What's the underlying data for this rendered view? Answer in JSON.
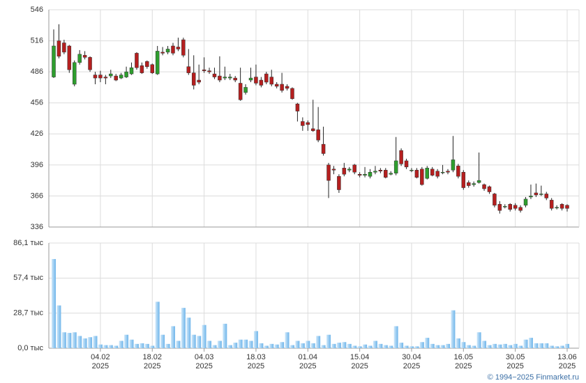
{
  "chart_data": [
    {
      "type": "candlestick",
      "open": [
        481,
        516,
        514,
        511,
        474,
        495,
        502,
        500,
        483,
        483,
        481,
        482,
        482,
        480,
        481,
        484,
        504,
        492,
        496,
        493,
        484,
        505,
        505,
        511,
        510,
        517,
        491,
        485,
        478,
        488,
        487,
        484,
        482,
        480,
        480,
        480,
        475,
        466,
        478,
        481,
        478,
        484,
        481,
        474,
        474,
        472,
        470,
        455,
        438,
        437,
        431,
        430,
        416,
        396,
        392,
        385,
        393,
        391,
        396,
        387,
        386,
        385,
        389,
        391,
        391,
        387,
        388,
        410,
        400,
        391,
        391,
        392,
        383,
        392,
        390,
        389,
        390,
        391,
        395,
        389,
        379,
        377,
        379,
        377,
        375,
        368,
        358,
        356,
        358,
        357,
        355,
        357,
        365,
        369,
        368,
        368,
        362,
        355,
        358,
        357
      ],
      "high": [
        527,
        532,
        517,
        512,
        497,
        507,
        506,
        501,
        486,
        487,
        483,
        488,
        484,
        485,
        491,
        495,
        505,
        495,
        497,
        494,
        511,
        510,
        511,
        514,
        519,
        519,
        508,
        502,
        493,
        500,
        490,
        490,
        501,
        491,
        484,
        482,
        490,
        474,
        490,
        493,
        481,
        486,
        488,
        476,
        485,
        474,
        471,
        456,
        442,
        439,
        459,
        452,
        433,
        398,
        395,
        387,
        398,
        394,
        397,
        389,
        394,
        392,
        395,
        393,
        393,
        390,
        423,
        412,
        402,
        393,
        393,
        394,
        395,
        394,
        392,
        396,
        392,
        424,
        397,
        391,
        381,
        380,
        408,
        378,
        376,
        369,
        361,
        358,
        359,
        359,
        357,
        365,
        377,
        378,
        376,
        370,
        364,
        357,
        359,
        358
      ],
      "low": [
        480,
        499,
        503,
        485,
        472,
        493,
        498,
        486,
        474,
        476,
        474,
        480,
        477,
        479,
        480,
        483,
        488,
        484,
        489,
        484,
        483,
        502,
        503,
        502,
        506,
        500,
        483,
        469,
        474,
        485,
        484,
        479,
        476,
        478,
        478,
        476,
        458,
        464,
        476,
        473,
        471,
        474,
        472,
        470,
        466,
        468,
        459,
        438,
        429,
        429,
        428,
        418,
        405,
        364,
        387,
        369,
        385,
        389,
        387,
        384,
        384,
        383,
        387,
        388,
        383,
        386,
        386,
        395,
        392,
        389,
        383,
        376,
        382,
        385,
        383,
        387,
        387,
        389,
        383,
        372,
        374,
        375,
        378,
        371,
        368,
        355,
        349,
        354,
        351,
        352,
        350,
        355,
        363,
        365,
        366,
        362,
        352,
        353,
        352,
        351
      ],
      "close": [
        511,
        501,
        505,
        488,
        495,
        503,
        500,
        488,
        480,
        480,
        480,
        484,
        478,
        483,
        486,
        490,
        490,
        485,
        491,
        485,
        506,
        504,
        508,
        504,
        508,
        502,
        485,
        473,
        476,
        487,
        486,
        481,
        478,
        481,
        481,
        478,
        459,
        471,
        480,
        475,
        473,
        476,
        474,
        472,
        468,
        470,
        460,
        448,
        434,
        435,
        429,
        420,
        407,
        381,
        391,
        372,
        387,
        392,
        389,
        386,
        387,
        389,
        390,
        390,
        384,
        388,
        400,
        397,
        394,
        391,
        384,
        377,
        393,
        386,
        385,
        389,
        389,
        401,
        385,
        374,
        376,
        378,
        381,
        373,
        370,
        357,
        352,
        356,
        353,
        354,
        352,
        363,
        366,
        367,
        368,
        364,
        354,
        355,
        354,
        354
      ],
      "up_color": "#2e9e2e",
      "down_color": "#b51f1f",
      "ylim": [
        336,
        546
      ],
      "yticks": [
        336,
        366,
        396,
        426,
        456,
        486,
        516,
        546
      ],
      "grid": true
    },
    {
      "type": "bar",
      "categories": [
        null,
        null,
        null,
        null,
        null,
        null,
        null,
        null,
        null,
        "04.02\n2025",
        null,
        null,
        null,
        null,
        null,
        null,
        null,
        null,
        null,
        "18.02\n2025",
        null,
        null,
        null,
        null,
        null,
        null,
        null,
        null,
        null,
        "04.03\n2025",
        null,
        null,
        null,
        null,
        null,
        null,
        null,
        null,
        null,
        "18.03\n2025",
        null,
        null,
        null,
        null,
        null,
        null,
        null,
        null,
        null,
        "01.04\n2025",
        null,
        null,
        null,
        null,
        null,
        null,
        null,
        null,
        null,
        "15.04\n2025",
        null,
        null,
        null,
        null,
        null,
        null,
        null,
        null,
        null,
        "30.04\n2025",
        null,
        null,
        null,
        null,
        null,
        null,
        null,
        null,
        null,
        "16.05\n2025",
        null,
        null,
        null,
        null,
        null,
        null,
        null,
        null,
        null,
        "30.05\n2025",
        null,
        null,
        null,
        null,
        null,
        null,
        null,
        null,
        null,
        "13.06\n2025"
      ],
      "values": [
        73,
        35,
        13,
        12.5,
        13,
        10,
        8,
        9,
        10,
        3,
        2.5,
        2.5,
        2,
        6,
        11,
        7,
        3.5,
        4,
        3.5,
        2,
        38,
        11,
        3.5,
        18,
        6,
        33,
        25,
        11,
        10,
        19,
        6,
        2.5,
        6,
        20,
        2.5,
        4.5,
        7,
        7,
        6,
        14,
        4,
        2,
        3.5,
        3,
        5,
        13,
        2.5,
        6,
        4,
        6,
        4,
        10,
        2.5,
        11,
        3.5,
        4.5,
        5,
        3.5,
        2,
        1.5,
        3,
        2,
        6,
        3.5,
        2.5,
        2,
        18,
        4.5,
        2,
        1.5,
        1.5,
        5,
        8.5,
        3.5,
        2.5,
        2.5,
        3.5,
        31,
        8,
        5,
        2.5,
        2,
        13,
        6,
        2.5,
        3.5,
        3,
        3.5,
        2.5,
        3.5,
        2,
        7,
        8.5,
        4,
        4,
        4,
        2,
        1.5,
        2,
        3.5
      ],
      "color": "#8ec8f0",
      "ylim": [
        0,
        86.1
      ],
      "yticks": [
        {
          "value": 0,
          "label": "0,0 тыс"
        },
        {
          "value": 28.7,
          "label": "28,7 тыс"
        },
        {
          "value": 57.4,
          "label": "57,4 тыс"
        },
        {
          "value": 86.1,
          "label": "86,1 тыс"
        }
      ],
      "grid": true
    }
  ],
  "footer": "© 1994−2025 Finmarket.ru"
}
